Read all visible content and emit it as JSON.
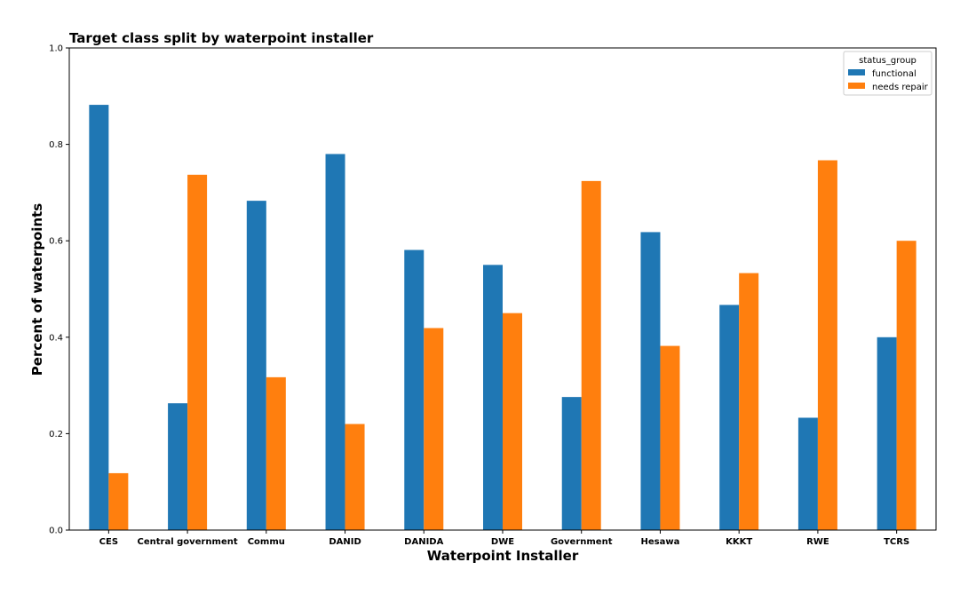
{
  "chart_data": {
    "type": "bar",
    "title": "Target class split by waterpoint installer",
    "xlabel": "Waterpoint Installer",
    "ylabel": "Percent of waterpoints",
    "ylim": [
      0,
      1.0
    ],
    "yticks": [
      "0.0",
      "0.2",
      "0.4",
      "0.6",
      "0.8",
      "1.0"
    ],
    "grid": false,
    "legend": {
      "title": "status_group",
      "placement": "top-right"
    },
    "categories": [
      "CES",
      "Central government",
      "Commu",
      "DANID",
      "DANIDA",
      "DWE",
      "Government",
      "Hesawa",
      "KKKT",
      "RWE",
      "TCRS"
    ],
    "series": [
      {
        "name": "functional",
        "color": "#1f77b4",
        "values": [
          0.882,
          0.263,
          0.683,
          0.78,
          0.581,
          0.55,
          0.276,
          0.618,
          0.467,
          0.233,
          0.4
        ]
      },
      {
        "name": "needs repair",
        "color": "#ff7f0e",
        "values": [
          0.118,
          0.737,
          0.317,
          0.22,
          0.419,
          0.45,
          0.724,
          0.382,
          0.533,
          0.767,
          0.6
        ]
      }
    ]
  }
}
